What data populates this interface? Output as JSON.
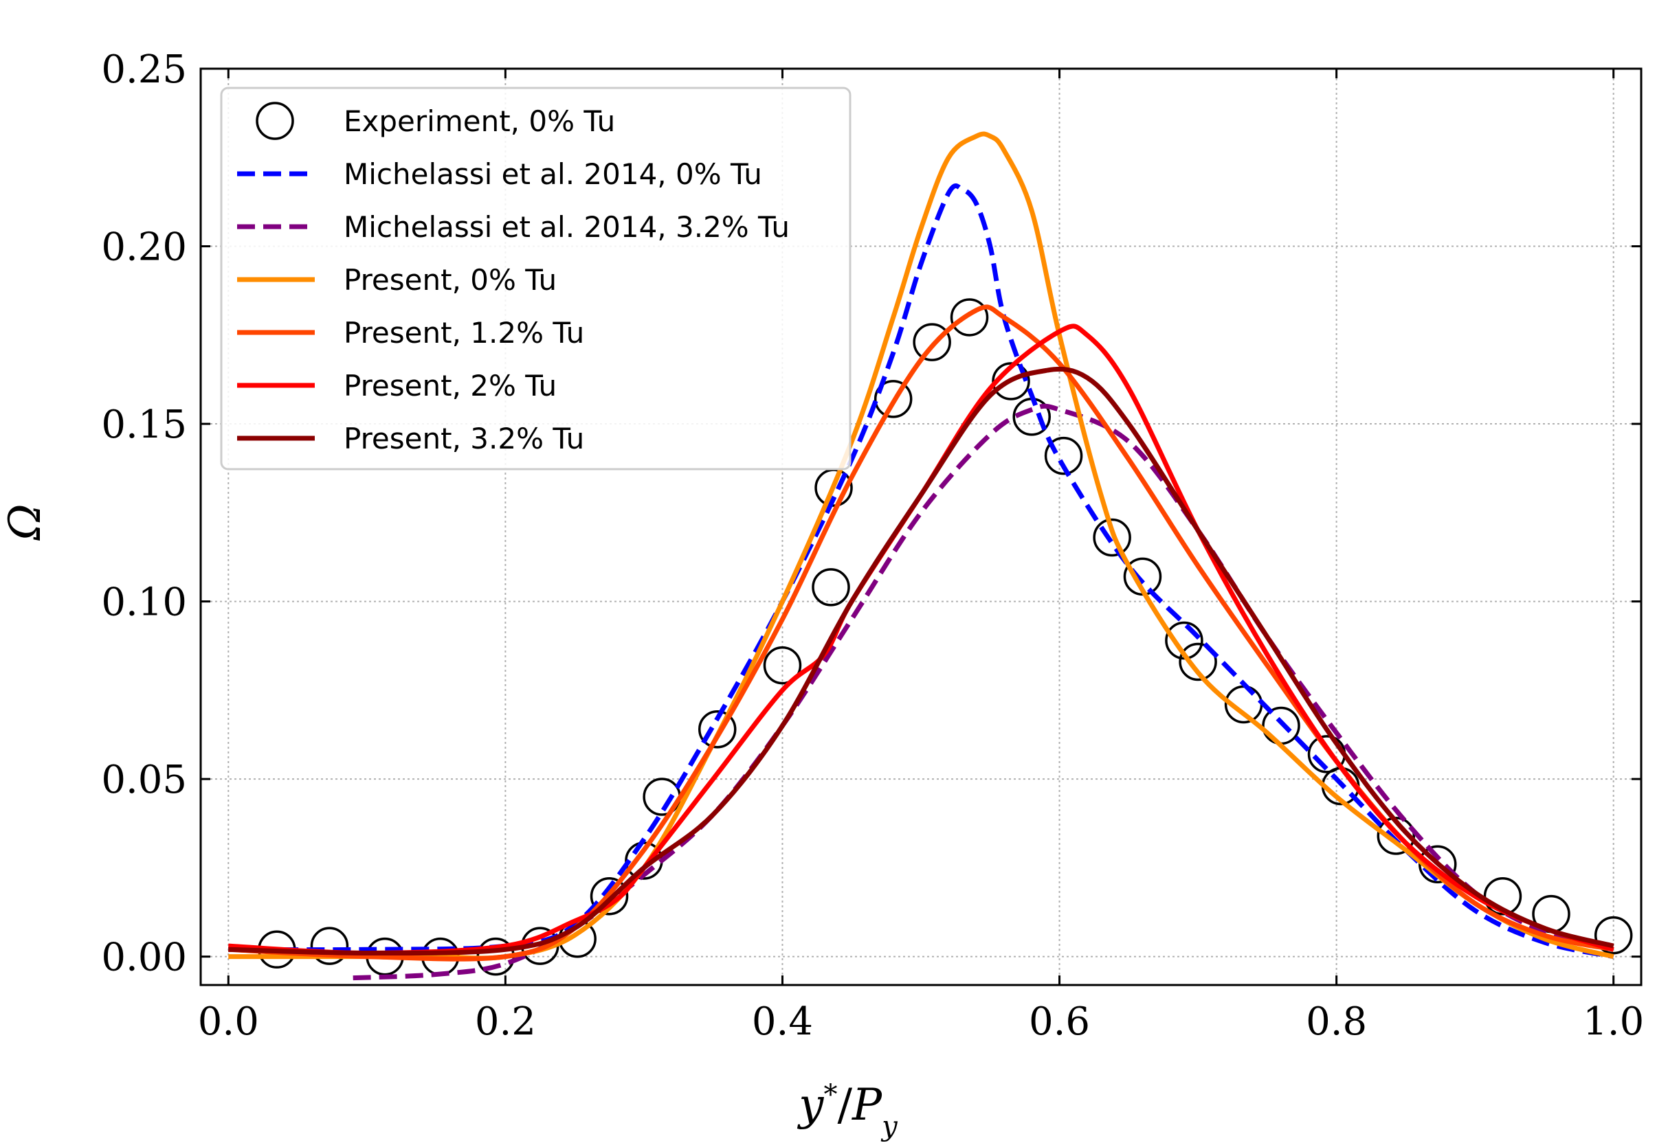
{
  "chart_data": {
    "type": "line",
    "xlabel": "y*/P_y",
    "xlabel_parts": {
      "base": "y",
      "sup": "*",
      "sep": "/",
      "p": "P",
      "sub": "y"
    },
    "ylabel": "Ω",
    "xlim": [
      -0.02,
      1.02
    ],
    "ylim": [
      -0.008,
      0.25
    ],
    "xticks": [
      0.0,
      0.2,
      0.4,
      0.6,
      0.8,
      1.0
    ],
    "xtick_labels": [
      "0.0",
      "0.2",
      "0.4",
      "0.6",
      "0.8",
      "1.0"
    ],
    "yticks": [
      0.0,
      0.05,
      0.1,
      0.15,
      0.2,
      0.25
    ],
    "ytick_labels": [
      "0.00",
      "0.05",
      "0.10",
      "0.15",
      "0.20",
      "0.25"
    ],
    "grid": true,
    "legend_position": "top-left",
    "series": [
      {
        "name": "Experiment, 0% Tu",
        "style": "circles",
        "color": "#000000",
        "x": [
          0.035,
          0.073,
          0.113,
          0.153,
          0.193,
          0.225,
          0.252,
          0.275,
          0.3,
          0.313,
          0.353,
          0.4,
          0.435,
          0.437,
          0.48,
          0.508,
          0.535,
          0.565,
          0.58,
          0.603,
          0.638,
          0.66,
          0.69,
          0.7,
          0.733,
          0.76,
          0.793,
          0.803,
          0.843,
          0.873,
          0.92,
          0.955,
          1.0
        ],
        "y": [
          0.002,
          0.003,
          0.0,
          0.0,
          0.0,
          0.003,
          0.005,
          0.017,
          0.027,
          0.045,
          0.064,
          0.082,
          0.104,
          0.132,
          0.157,
          0.173,
          0.18,
          0.162,
          0.152,
          0.141,
          0.118,
          0.107,
          0.089,
          0.083,
          0.071,
          0.065,
          0.057,
          0.048,
          0.034,
          0.026,
          0.017,
          0.012,
          0.006
        ]
      },
      {
        "name": "Michelassi et al. 2014, 0% Tu",
        "style": "dashed",
        "color": "#0000ff",
        "x": [
          0.0,
          0.1,
          0.2,
          0.25,
          0.3,
          0.35,
          0.4,
          0.45,
          0.48,
          0.5,
          0.52,
          0.53,
          0.54,
          0.55,
          0.56,
          0.58,
          0.6,
          0.65,
          0.7,
          0.75,
          0.8,
          0.85,
          0.9,
          0.95,
          1.0
        ],
        "y": [
          0.002,
          0.002,
          0.003,
          0.009,
          0.033,
          0.065,
          0.1,
          0.14,
          0.17,
          0.195,
          0.215,
          0.216,
          0.212,
          0.2,
          0.18,
          0.158,
          0.14,
          0.11,
          0.09,
          0.07,
          0.05,
          0.03,
          0.013,
          0.004,
          0.0
        ]
      },
      {
        "name": "Michelassi et al. 2014, 3.2% Tu",
        "style": "dashed",
        "color": "#800080",
        "x": [
          0.09,
          0.15,
          0.2,
          0.25,
          0.3,
          0.35,
          0.4,
          0.45,
          0.5,
          0.55,
          0.58,
          0.6,
          0.65,
          0.7,
          0.75,
          0.8,
          0.85,
          0.9,
          0.95,
          1.0
        ],
        "y": [
          -0.006,
          -0.005,
          -0.002,
          0.008,
          0.023,
          0.04,
          0.065,
          0.095,
          0.125,
          0.147,
          0.154,
          0.154,
          0.145,
          0.12,
          0.09,
          0.063,
          0.038,
          0.018,
          0.007,
          0.002
        ]
      },
      {
        "name": "Present, 0% Tu",
        "style": "solid",
        "color": "#ff8c00",
        "x": [
          0.0,
          0.05,
          0.1,
          0.15,
          0.2,
          0.25,
          0.3,
          0.35,
          0.4,
          0.45,
          0.48,
          0.5,
          0.52,
          0.54,
          0.55,
          0.56,
          0.58,
          0.6,
          0.63,
          0.65,
          0.7,
          0.75,
          0.8,
          0.85,
          0.9,
          0.95,
          1.0
        ],
        "y": [
          0.0,
          0.0,
          0.0,
          0.0,
          0.0,
          0.006,
          0.025,
          0.06,
          0.1,
          0.145,
          0.18,
          0.205,
          0.225,
          0.231,
          0.231,
          0.227,
          0.21,
          0.175,
          0.13,
          0.11,
          0.08,
          0.063,
          0.045,
          0.03,
          0.015,
          0.005,
          0.0
        ]
      },
      {
        "name": "Present, 1.2% Tu",
        "style": "solid",
        "color": "#ff4500",
        "x": [
          0.0,
          0.1,
          0.2,
          0.25,
          0.3,
          0.35,
          0.4,
          0.45,
          0.5,
          0.54,
          0.56,
          0.6,
          0.65,
          0.7,
          0.75,
          0.8,
          0.85,
          0.9,
          0.95,
          1.0
        ],
        "y": [
          0.002,
          0.0,
          0.0,
          0.008,
          0.03,
          0.06,
          0.095,
          0.135,
          0.168,
          0.182,
          0.18,
          0.167,
          0.14,
          0.11,
          0.082,
          0.055,
          0.032,
          0.015,
          0.006,
          0.002
        ]
      },
      {
        "name": "Present, 2% Tu",
        "style": "solid",
        "color": "#ff0000",
        "x": [
          0.0,
          0.1,
          0.2,
          0.25,
          0.28,
          0.3,
          0.35,
          0.4,
          0.43,
          0.45,
          0.5,
          0.55,
          0.6,
          0.62,
          0.65,
          0.7,
          0.75,
          0.8,
          0.85,
          0.9,
          0.95,
          1.0
        ],
        "y": [
          0.003,
          0.001,
          0.003,
          0.01,
          0.016,
          0.025,
          0.05,
          0.075,
          0.085,
          0.1,
          0.13,
          0.16,
          0.176,
          0.175,
          0.16,
          0.12,
          0.085,
          0.055,
          0.032,
          0.017,
          0.008,
          0.002
        ]
      },
      {
        "name": "Present, 3.2% Tu",
        "style": "solid",
        "color": "#8b0000",
        "x": [
          0.0,
          0.1,
          0.2,
          0.25,
          0.3,
          0.35,
          0.4,
          0.45,
          0.5,
          0.55,
          0.59,
          0.62,
          0.65,
          0.7,
          0.75,
          0.8,
          0.85,
          0.9,
          0.95,
          1.0
        ],
        "y": [
          0.002,
          0.001,
          0.002,
          0.008,
          0.025,
          0.04,
          0.065,
          0.1,
          0.13,
          0.158,
          0.165,
          0.163,
          0.15,
          0.12,
          0.09,
          0.06,
          0.035,
          0.018,
          0.008,
          0.003
        ]
      }
    ]
  }
}
